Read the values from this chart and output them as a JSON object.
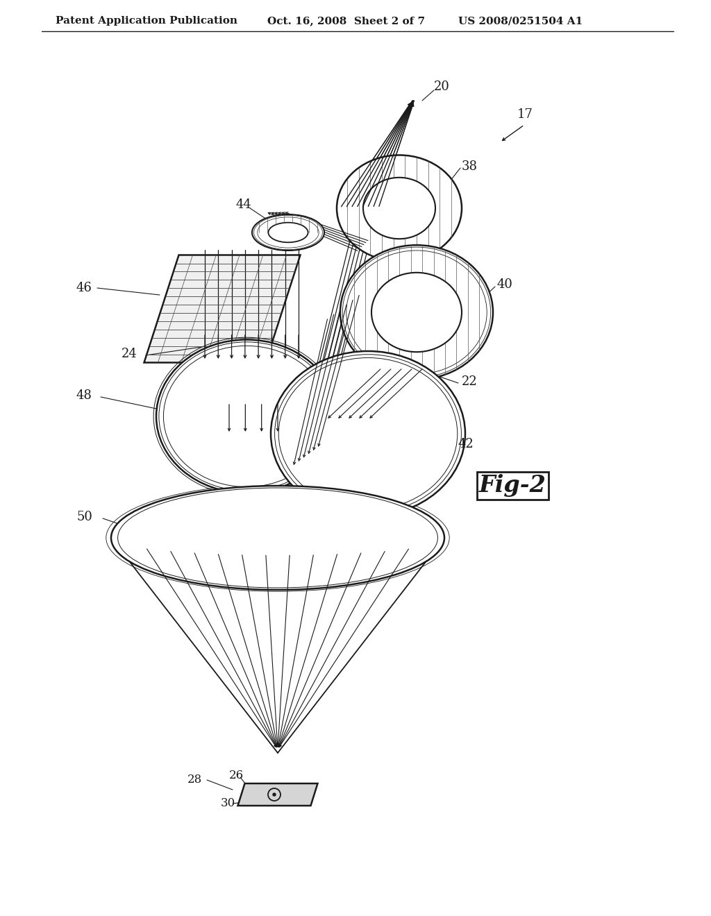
{
  "bg_color": "#ffffff",
  "line_color": "#1a1a1a",
  "text_color": "#1a1a1a",
  "header_left": "Patent Application Publication",
  "header_mid": "Oct. 16, 2008  Sheet 2 of 7",
  "header_right": "US 2008/0251504 A1",
  "fig_label": "Fig-2"
}
